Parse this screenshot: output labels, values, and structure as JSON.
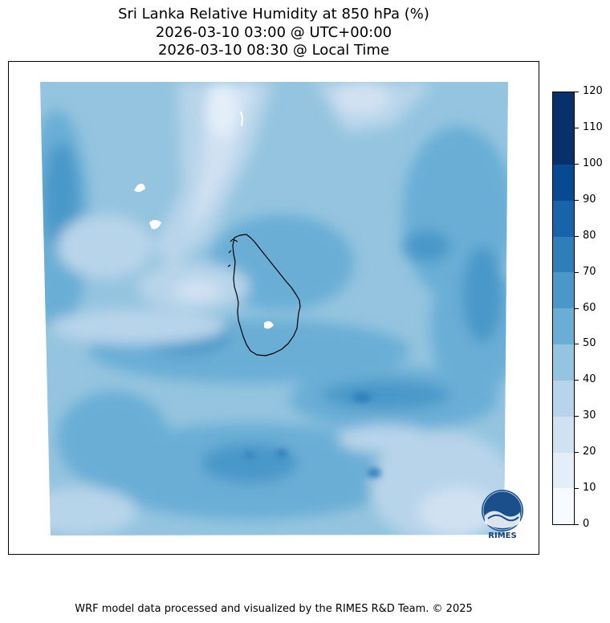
{
  "title": {
    "line1": "Sri Lanka Relative Humidity at 850 hPa (%)",
    "line2": "2026-03-10 03:00 @ UTC+00:00",
    "line3": "2026-03-10 08:30 @ Local Time"
  },
  "colorbar": {
    "ticks": [
      "0",
      "10",
      "20",
      "30",
      "40",
      "50",
      "60",
      "70",
      "80",
      "90",
      "100",
      "110",
      "120"
    ],
    "colors": [
      "#f7fbff",
      "#e3eef9",
      "#d0e1f2",
      "#b7d4ea",
      "#94c4df",
      "#6aaed6",
      "#4a98c9",
      "#2e7ebc",
      "#1764ab",
      "#084a91",
      "#08306b",
      "#08306b"
    ]
  },
  "map": {
    "field": "Relative Humidity",
    "level": "850 hPa",
    "land_outline": "Sri Lanka"
  },
  "logo": {
    "label": "RIMES"
  },
  "footer": "WRF model data processed and visualized by the RIMES R&D Team. © 2025"
}
